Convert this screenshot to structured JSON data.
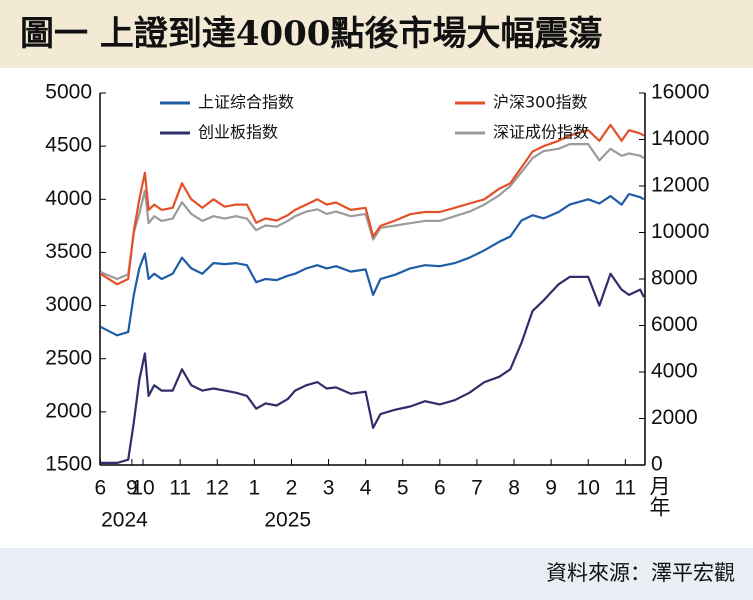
{
  "title": "圖一 上證到達4000點後市場大幅震蕩",
  "source": "資料來源：澤平宏觀",
  "chart_data": {
    "type": "line",
    "x": [
      8.85,
      9.3,
      9.6,
      9.75,
      9.9,
      10.05,
      10.15,
      10.3,
      10.5,
      10.8,
      11.05,
      11.3,
      11.6,
      11.9,
      12.2,
      12.5,
      12.8,
      13.05,
      13.3,
      13.6,
      13.9,
      14.1,
      14.4,
      14.7,
      14.95,
      15.2,
      15.6,
      16.0,
      16.2,
      16.4,
      16.8,
      17.2,
      17.6,
      18.0,
      18.4,
      18.8,
      19.2,
      19.6,
      19.9,
      20.2,
      20.5,
      20.8,
      21.2,
      21.5,
      22.0,
      22.3,
      22.6,
      22.9,
      23.1,
      23.4,
      23.5
    ],
    "series": [
      {
        "name": "上证综合指数",
        "color": "#1f5ca6",
        "values": [
          2800,
          2720,
          2750,
          3100,
          3350,
          3490,
          3250,
          3300,
          3250,
          3300,
          3450,
          3350,
          3300,
          3400,
          3390,
          3400,
          3380,
          3220,
          3250,
          3240,
          3280,
          3300,
          3350,
          3380,
          3350,
          3370,
          3320,
          3340,
          3100,
          3250,
          3290,
          3350,
          3380,
          3370,
          3400,
          3450,
          3520,
          3600,
          3650,
          3800,
          3850,
          3820,
          3880,
          3950,
          4000,
          3960,
          4030,
          3950,
          4050,
          4020,
          4000
        ]
      },
      {
        "name": "沪深300指数",
        "color": "#e4502a",
        "values": [
          3300,
          3200,
          3250,
          3700,
          4000,
          4250,
          3900,
          3950,
          3900,
          3920,
          4150,
          4000,
          3920,
          4000,
          3930,
          3950,
          3950,
          3780,
          3820,
          3800,
          3850,
          3900,
          3950,
          4000,
          3950,
          3970,
          3900,
          3920,
          3650,
          3750,
          3800,
          3860,
          3880,
          3880,
          3920,
          3960,
          4000,
          4100,
          4150,
          4300,
          4450,
          4500,
          4550,
          4600,
          4650,
          4550,
          4700,
          4550,
          4650,
          4620,
          4600
        ]
      },
      {
        "name": "创业板指数",
        "color": "#302d6b",
        "values": [
          1520,
          1520,
          1550,
          1900,
          2300,
          2550,
          2150,
          2250,
          2200,
          2200,
          2400,
          2250,
          2200,
          2220,
          2200,
          2180,
          2150,
          2030,
          2080,
          2060,
          2120,
          2200,
          2250,
          2280,
          2220,
          2230,
          2170,
          2190,
          1850,
          1980,
          2020,
          2050,
          2100,
          2070,
          2110,
          2180,
          2280,
          2330,
          2400,
          2650,
          2950,
          3050,
          3200,
          3270,
          3270,
          3000,
          3300,
          3150,
          3100,
          3150,
          3080
        ]
      },
      {
        "name": "深证成份指数",
        "color": "#9b9b9b",
        "axis": "y2",
        "values": [
          8300,
          8000,
          8200,
          10000,
          10800,
          11800,
          10400,
          10700,
          10500,
          10600,
          11300,
          10800,
          10500,
          10700,
          10600,
          10700,
          10600,
          10100,
          10300,
          10250,
          10500,
          10700,
          10900,
          11000,
          10800,
          10900,
          10700,
          10800,
          9700,
          10200,
          10300,
          10400,
          10500,
          10500,
          10700,
          10900,
          11200,
          11600,
          12000,
          12600,
          13200,
          13500,
          13600,
          13800,
          13800,
          13100,
          13600,
          13300,
          13400,
          13300,
          13200
        ]
      }
    ],
    "xlim": [
      8.84,
      23.53
    ],
    "xticks": [
      {
        "value": 8.85,
        "label": "6"
      },
      {
        "value": 9.7,
        "label": "9"
      },
      {
        "value": 10,
        "label": "10"
      },
      {
        "value": 11,
        "label": "11"
      },
      {
        "value": 12,
        "label": "12"
      },
      {
        "value": 13,
        "label": "1"
      },
      {
        "value": 14,
        "label": "2"
      },
      {
        "value": 15,
        "label": "3"
      },
      {
        "value": 16,
        "label": "4"
      },
      {
        "value": 17,
        "label": "5"
      },
      {
        "value": 18,
        "label": "6"
      },
      {
        "value": 19,
        "label": "7"
      },
      {
        "value": 20,
        "label": "8"
      },
      {
        "value": 21,
        "label": "9"
      },
      {
        "value": 22,
        "label": "10"
      },
      {
        "value": 23,
        "label": "11"
      }
    ],
    "year_labels": [
      {
        "value": 9.5,
        "label": "2024"
      },
      {
        "value": 13.9,
        "label": "2025"
      }
    ],
    "x_unit": "月年",
    "ylim": [
      1500,
      5000
    ],
    "yticks": [
      1500,
      2000,
      2500,
      3000,
      3500,
      4000,
      4500,
      5000
    ],
    "y2lim": [
      0,
      16000
    ],
    "y2ticks": [
      0,
      2000,
      4000,
      6000,
      8000,
      10000,
      12000,
      14000,
      16000
    ]
  }
}
